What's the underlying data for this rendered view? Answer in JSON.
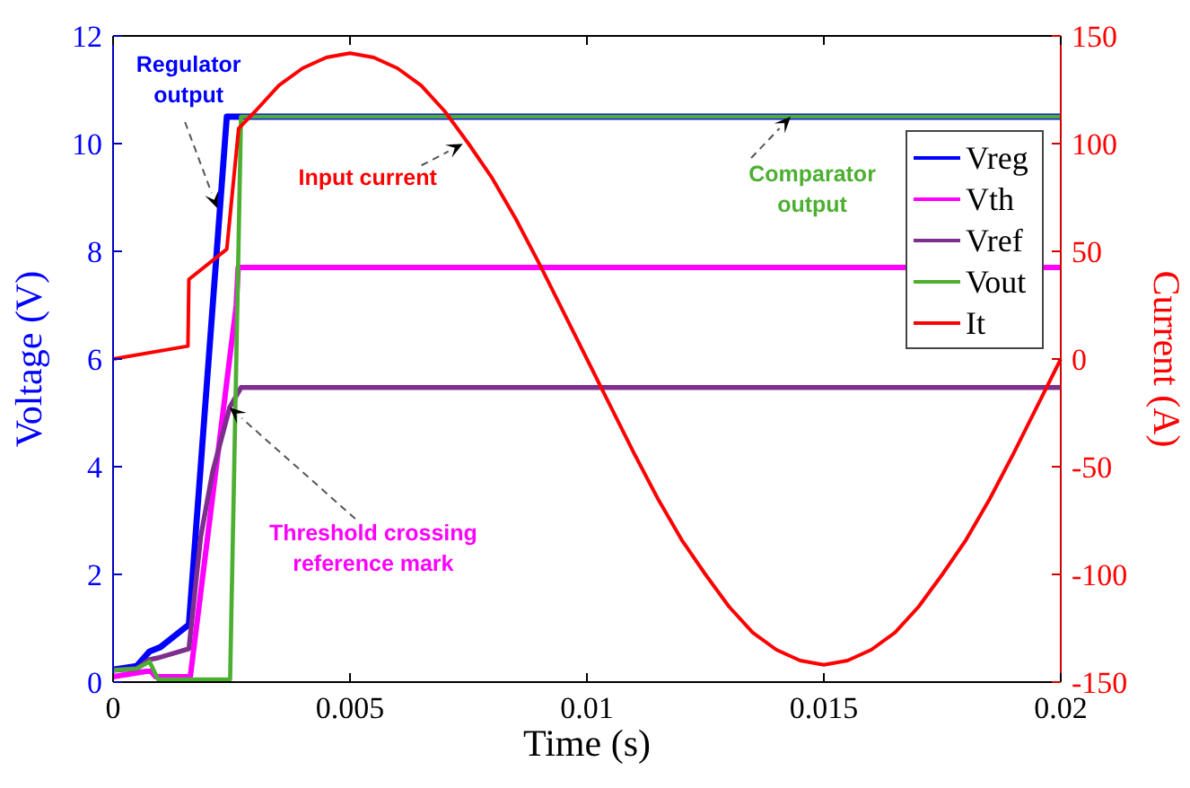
{
  "chart_data": {
    "type": "line",
    "xlabel": "Time (s)",
    "ylabel": "Voltage (V)",
    "y2label": "Current (A)",
    "xlim": [
      0,
      0.02
    ],
    "xticks": [
      0,
      0.005,
      0.01,
      0.015,
      0.02
    ],
    "ylim": [
      0,
      12
    ],
    "yticks": [
      0,
      2,
      4,
      6,
      8,
      10,
      12
    ],
    "y2lim": [
      -150,
      150
    ],
    "y2ticks": [
      -150,
      -100,
      -50,
      0,
      50,
      100,
      150
    ],
    "legend": "top right",
    "grid": false,
    "line_style": "solid",
    "marker": "none",
    "series": [
      {
        "name": "Vreg",
        "color": "#0000ff",
        "x": [
          0,
          0.0005,
          0.00077,
          0.001,
          0.0016,
          0.0024,
          0.02
        ],
        "values": [
          0.23,
          0.3,
          0.57,
          0.65,
          1.07,
          10.5,
          10.5
        ]
      },
      {
        "name": "Vth",
        "color": "#ff00ff",
        "x": [
          0,
          0.0007,
          0.0008,
          0.0009,
          0.00163,
          0.0026,
          0.00264,
          0.02
        ],
        "values": [
          0.1,
          0.2,
          0.2,
          0.1,
          0.1,
          7.0,
          7.7,
          7.7
        ]
      },
      {
        "name": "Vref",
        "color": "#7e2f8e",
        "x": [
          0,
          0.0005,
          0.00077,
          0.00095,
          0.0016,
          0.00185,
          0.0021,
          0.00246,
          0.0027,
          0.02
        ],
        "values": [
          0.22,
          0.25,
          0.42,
          0.45,
          0.62,
          2.7,
          3.9,
          5.1,
          5.47,
          5.47
        ]
      },
      {
        "name": "Vout",
        "color": "#4daf32",
        "x": [
          0,
          0.0005,
          0.00077,
          0.00095,
          0.00247,
          0.0027,
          0.02
        ],
        "values": [
          0.22,
          0.25,
          0.38,
          0.05,
          0.05,
          10.5,
          10.5
        ]
      },
      {
        "name": "It",
        "color": "#ff0000",
        "axis": "y2",
        "x": [
          0,
          0.00158,
          0.0016,
          0.0024,
          0.00265,
          0.003,
          0.0035,
          0.004,
          0.0045,
          0.005,
          0.0055,
          0.006,
          0.0065,
          0.007,
          0.0075,
          0.008,
          0.0085,
          0.009,
          0.0095,
          0.01,
          0.0105,
          0.011,
          0.0115,
          0.012,
          0.0125,
          0.013,
          0.0135,
          0.014,
          0.0145,
          0.015,
          0.0155,
          0.016,
          0.0165,
          0.017,
          0.0175,
          0.018,
          0.0185,
          0.019,
          0.0195,
          0.02
        ],
        "values": [
          0,
          6,
          37,
          51,
          107,
          115,
          127,
          135,
          140,
          142,
          140,
          135,
          127,
          115,
          100,
          84,
          65,
          44,
          22,
          0,
          -22,
          -44,
          -65,
          -84,
          -100,
          -115,
          -127,
          -135,
          -140,
          -142,
          -140,
          -135,
          -127,
          -115,
          -100,
          -84,
          -65,
          -44,
          -22,
          0
        ]
      }
    ],
    "annotations": [
      {
        "text": "Regulator\noutput",
        "x": 0.0022,
        "y": 8.8
      },
      "Input current",
      {
        "text": "Comparator\noutput",
        "x": 0.0143,
        "y": 10.5
      },
      {
        "text": "Threshold crossing\nreference mark",
        "x": 0.00246,
        "y": 5.1
      }
    ]
  }
}
